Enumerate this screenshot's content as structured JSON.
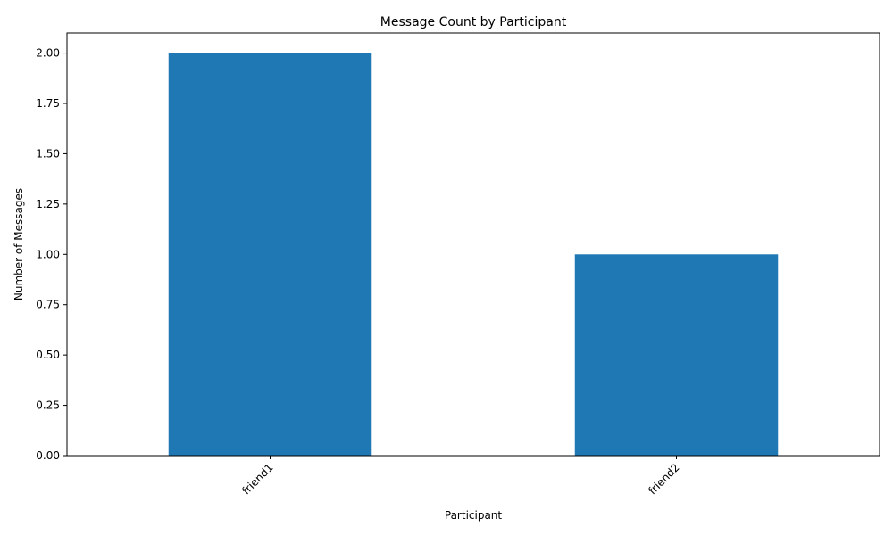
{
  "chart_data": {
    "type": "bar",
    "title": "Message Count by Participant",
    "xlabel": "Participant",
    "ylabel": "Number of Messages",
    "categories": [
      "friend1",
      "friend2"
    ],
    "values": [
      2,
      1
    ],
    "ylim": [
      0,
      2.1
    ],
    "yticks": [
      "0.00",
      "0.25",
      "0.50",
      "0.75",
      "1.00",
      "1.25",
      "1.50",
      "1.75",
      "2.00"
    ],
    "bar_color": "#1f77b4",
    "xtick_rotation_deg": 45,
    "grid": false,
    "legend": "none"
  }
}
